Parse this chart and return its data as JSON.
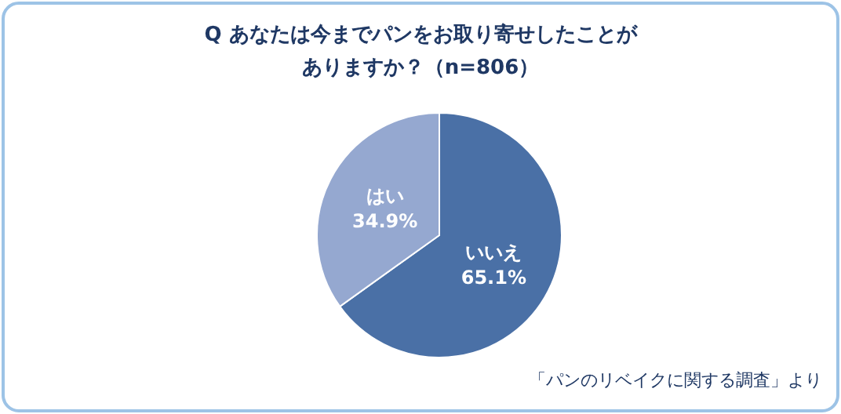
{
  "chart_data": {
    "type": "pie",
    "title": "Q あなたは今までパンをお取り寄せしたことがありますか？（n=806）",
    "categories": [
      "いいえ",
      "はい"
    ],
    "values": [
      65.1,
      34.9
    ],
    "colors": [
      "#4a70a6",
      "#95a8d0"
    ],
    "value_labels": [
      "65.1%",
      "34.9%"
    ],
    "legend": false,
    "annotations": [
      "「パンのリベイクに関する調査」より"
    ]
  }
}
